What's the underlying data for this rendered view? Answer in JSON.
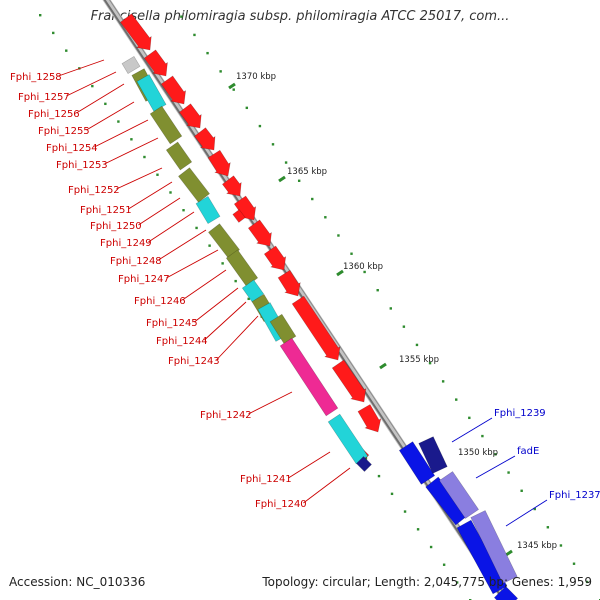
{
  "title": "Francisella philomiragia subsp. philomiragia ATCC 25017, com...",
  "footer": {
    "accession": "Accession: NC_010336",
    "summary": "Topology: circular; Length: 2,045,775 bp; Genes: 1,959"
  },
  "colors": {
    "left_labels": "#cc0000",
    "right_labels": "#0000cc",
    "tick_marks": "#2e8b2e",
    "backbone": "#999999",
    "forward_cds": "#ff1a1a",
    "olive_track": "#808f30",
    "cyan_track": "#22d4d8",
    "magenta_track": "#ee2a94",
    "grey_feature": "#c8c8c8",
    "blue_strand": "#0a14e6",
    "lilac_strand": "#8a7ee0",
    "navy_feature": "#1a1a8c"
  },
  "position_labels": [
    "1370 kbp",
    "1365 kbp",
    "1360 kbp",
    "1355 kbp",
    "1350 kbp",
    "1345 kbp"
  ],
  "left_genes": [
    "Fphi_1258",
    "Fphi_1257",
    "Fphi_1256",
    "Fphi_1255",
    "Fphi_1254",
    "Fphi_1253",
    "Fphi_1252",
    "Fphi_1251",
    "Fphi_1250",
    "Fphi_1249",
    "Fphi_1248",
    "Fphi_1247",
    "Fphi_1246",
    "Fphi_1245",
    "Fphi_1244",
    "Fphi_1243",
    "Fphi_1242",
    "Fphi_1241",
    "Fphi_1240"
  ],
  "right_genes": [
    "Fphi_1239",
    "fadE",
    "Fphi_1237"
  ]
}
